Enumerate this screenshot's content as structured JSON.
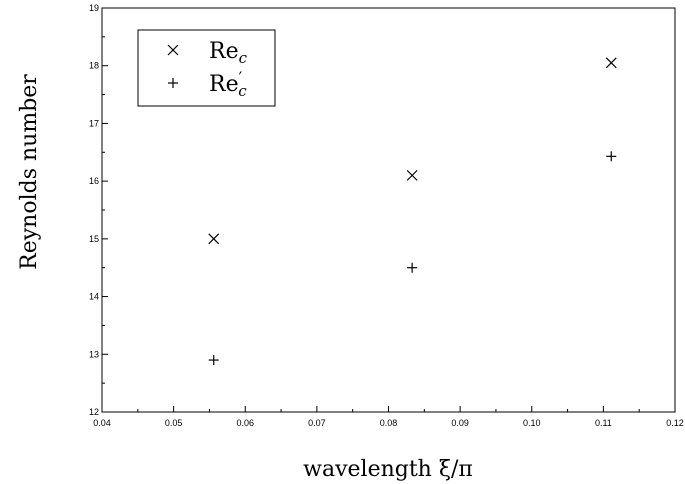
{
  "chart_data": {
    "type": "scatter",
    "xlabel": "wavelength ξ/π",
    "ylabel": "Reynolds number",
    "xlim": [
      0.04,
      0.12
    ],
    "ylim": [
      12,
      19
    ],
    "x_ticks": [
      "0.04",
      "0.05",
      "0.06",
      "0.07",
      "0.08",
      "0.09",
      "0.10",
      "0.11",
      "0.12"
    ],
    "y_ticks": [
      "12",
      "13",
      "14",
      "15",
      "16",
      "17",
      "18",
      "19"
    ],
    "grid": false,
    "legend_position": "top-left",
    "series": [
      {
        "name": "Re_c",
        "label_main": "Re",
        "label_sub": "c",
        "label_prime": "",
        "marker": "x",
        "points": [
          {
            "x": 0.0556,
            "y": 15.0
          },
          {
            "x": 0.0833,
            "y": 16.1
          },
          {
            "x": 0.1111,
            "y": 18.05
          }
        ]
      },
      {
        "name": "Re'_c",
        "label_main": "Re",
        "label_sub": "c",
        "label_prime": "′",
        "marker": "+",
        "points": [
          {
            "x": 0.0556,
            "y": 12.9
          },
          {
            "x": 0.0833,
            "y": 14.5
          },
          {
            "x": 0.1111,
            "y": 16.43
          }
        ]
      }
    ]
  }
}
